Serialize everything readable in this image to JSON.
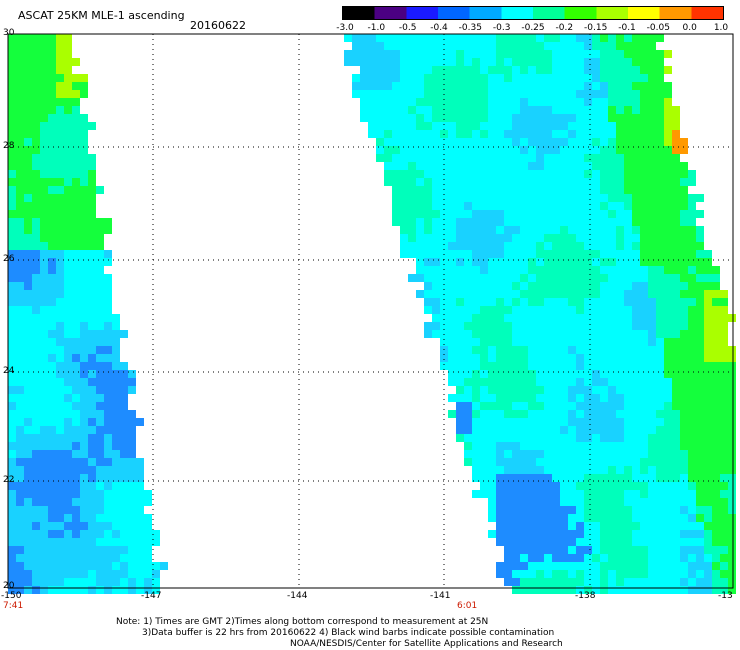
{
  "header": {
    "title": "ASCAT 25KM MLE-1 ascending",
    "date": "20160622"
  },
  "colorbar": {
    "labels": [
      "-3.0",
      "-1.0",
      "-0.5",
      "-0.4",
      "-0.35",
      "-0.3",
      "-0.25",
      "-0.2",
      "-0.15",
      "-0.1",
      "-0.05",
      "0.0",
      "1.0"
    ],
    "colors": [
      "#000000",
      "#4b0082",
      "#1a1aff",
      "#0066ff",
      "#00aaff",
      "#00ffff",
      "#00ff99",
      "#33ff00",
      "#aaff00",
      "#ffff00",
      "#ff9900",
      "#ff3300"
    ]
  },
  "axes": {
    "y_ticks": [
      "30",
      "28",
      "26",
      "24",
      "22",
      "20"
    ],
    "x_ticks": [
      "-150",
      "-147",
      "-144",
      "-141",
      "-138",
      "-13"
    ]
  },
  "times": {
    "left": "7:41",
    "right": "6:01"
  },
  "notes": {
    "line1": "Note: 1) Times are GMT 2)Times along bottom correspond to measurement at 25N",
    "line2": "3)Data buffer is 22 hrs from 20160622 4) Black wind barbs indicate possible contamination",
    "line3": "NOAA/NESDIS/Center for Satellite Applications and Research"
  },
  "palette": {
    "deep_blue": "#1e8cff",
    "sky": "#19d2ff",
    "cyan": "#00ffff",
    "aqua_green": "#00ffbb",
    "green": "#14ff3c",
    "yellow_green": "#aaff00",
    "yellow": "#ffff00",
    "orange": "#ff9900"
  }
}
